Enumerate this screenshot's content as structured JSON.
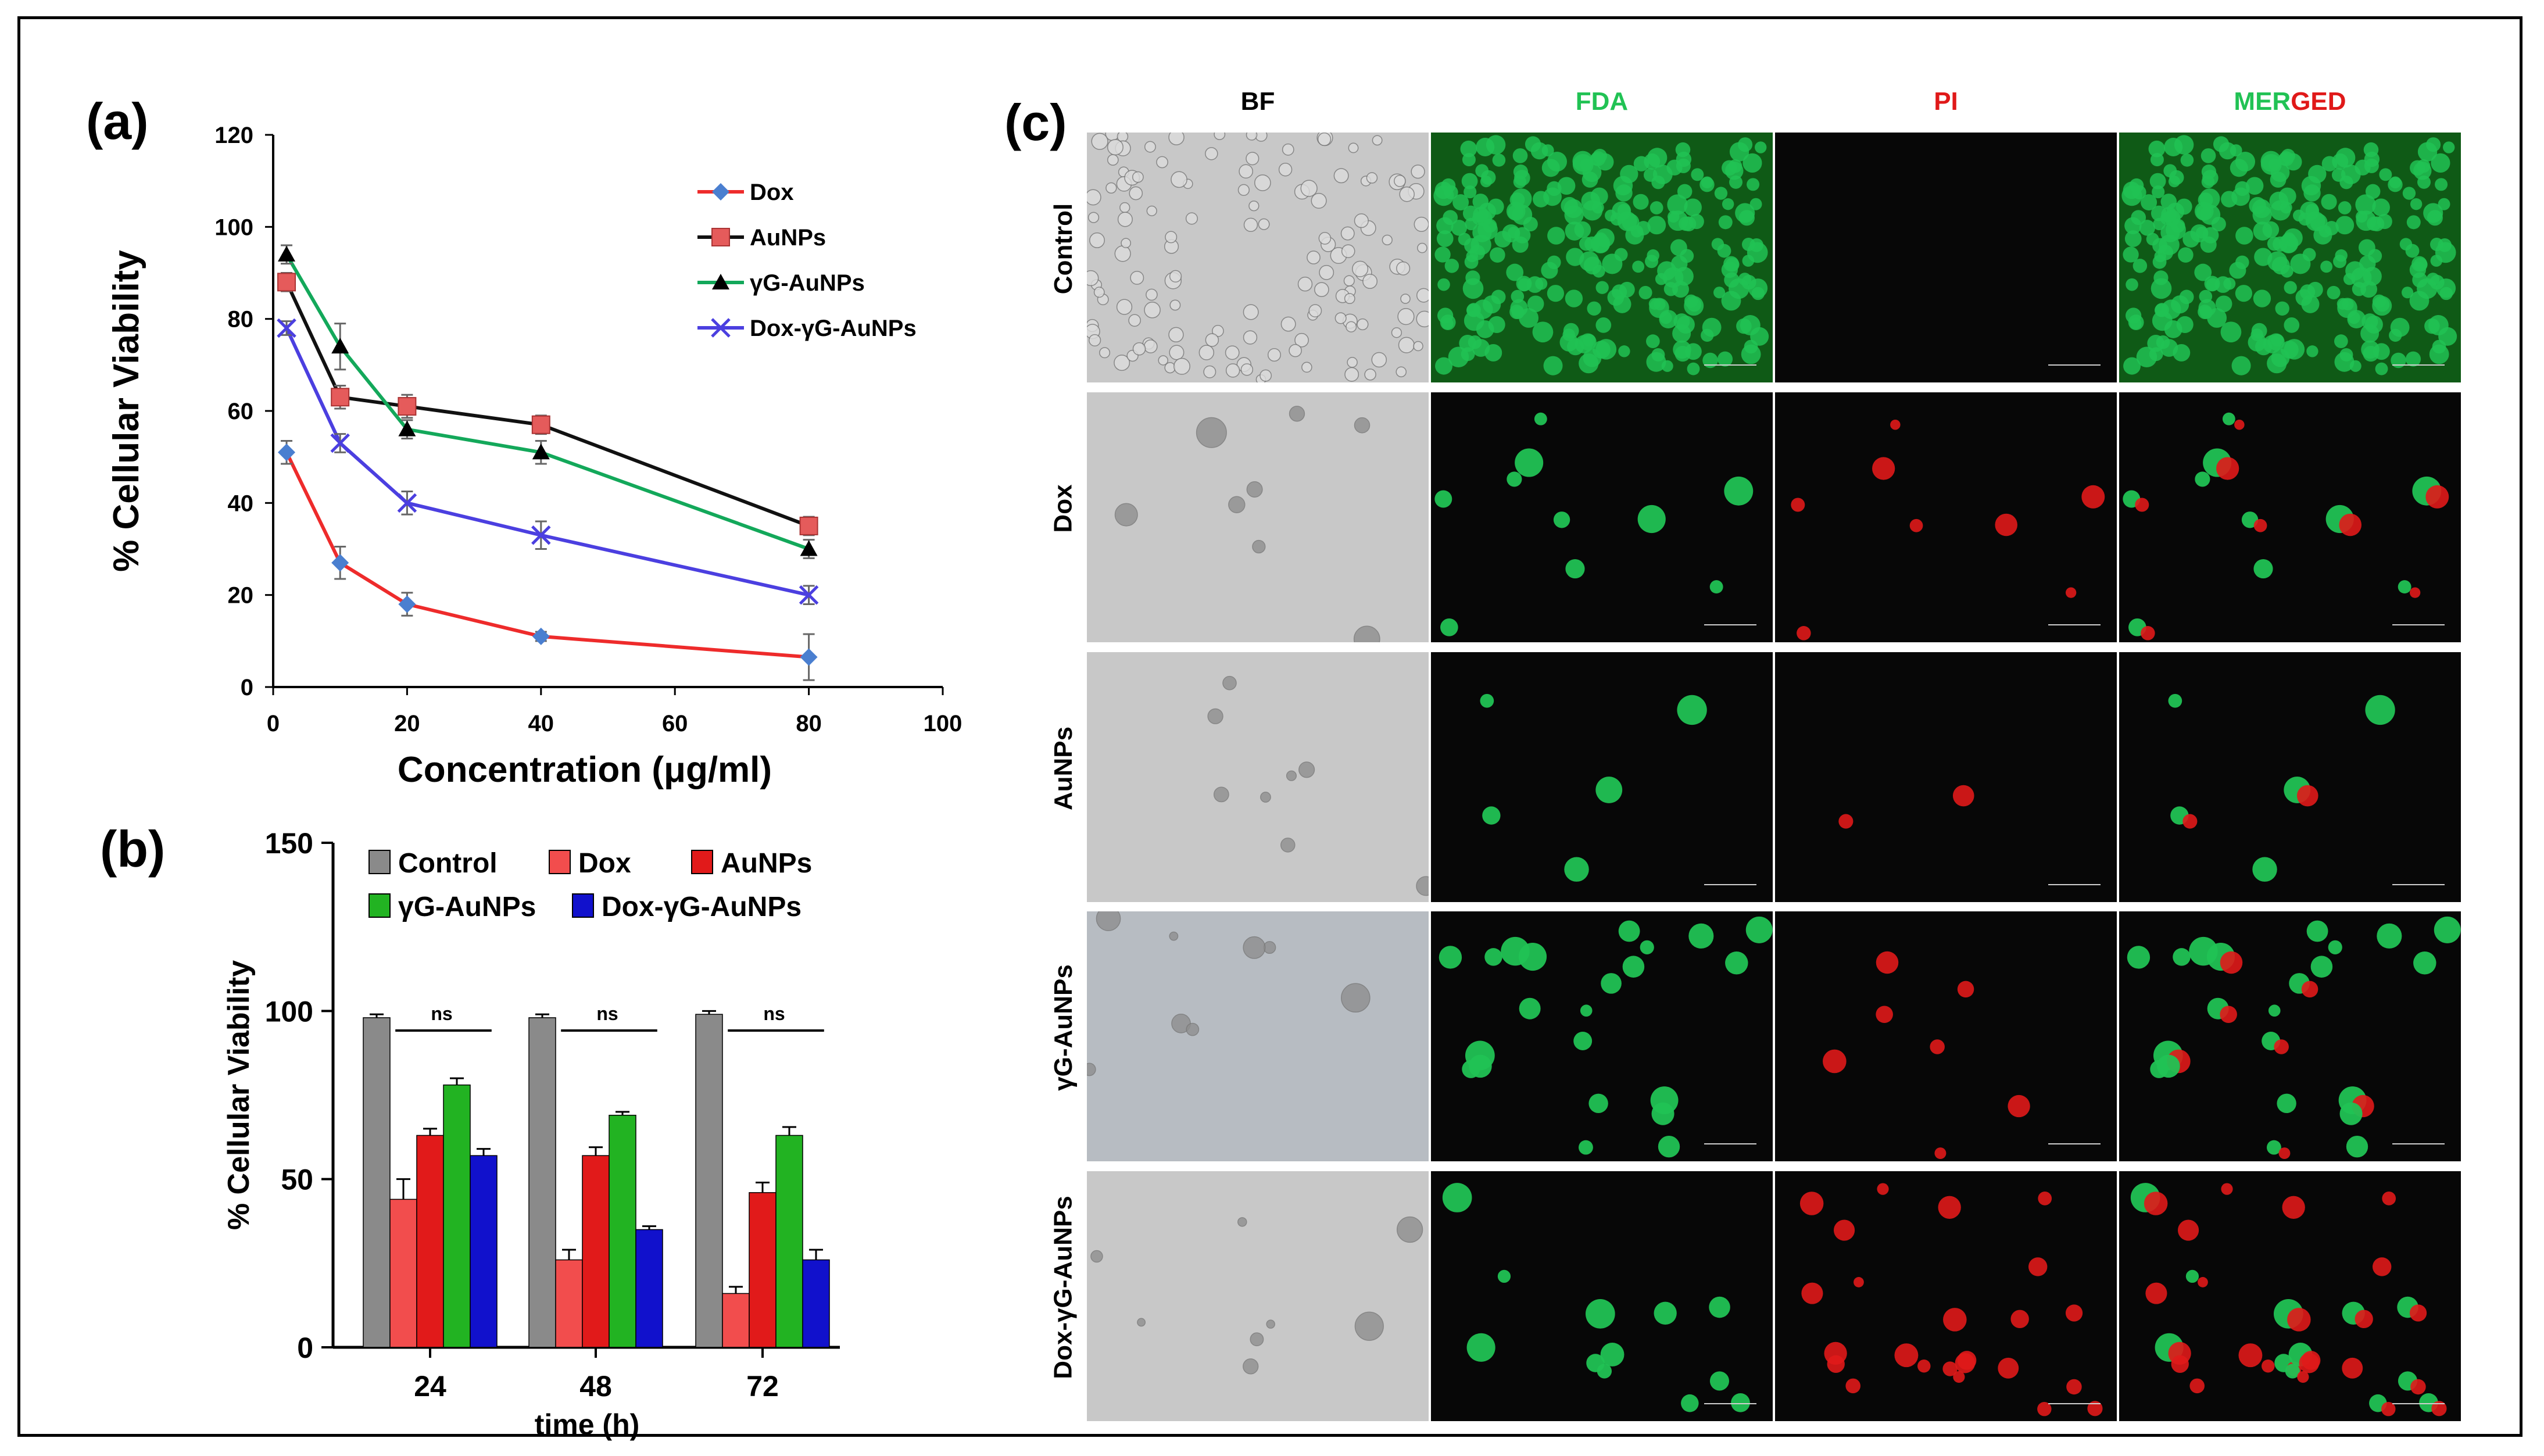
{
  "panel_labels": {
    "a": "(a)",
    "b": "(b)",
    "c": "(c)"
  },
  "colors": {
    "dox": "#ee2b2b",
    "aunps": "#111111",
    "ygaunps": "#13a85a",
    "doxyg": "#4b3fe0",
    "marker_dox": "#4a7fd0",
    "marker_aunps": "#e55b5b",
    "bar_control": "#8a8a8a",
    "bar_dox": "#f24d4d",
    "bar_aunps": "#e11a1a",
    "bar_yg": "#22b322",
    "bar_doxyg": "#1111cc",
    "fda": "#21c254",
    "pi": "#e01919",
    "bf_bg": "#c8c8c8"
  },
  "chart_data": [
    {
      "type": "line",
      "title": "",
      "xlabel": "Concentration (μg/ml)",
      "ylabel": "% Cellular Viability",
      "xlim": [
        0,
        100
      ],
      "ylim": [
        0,
        120
      ],
      "xticks": [
        0,
        20,
        40,
        60,
        80,
        100
      ],
      "yticks": [
        0,
        20,
        40,
        60,
        80,
        100,
        120
      ],
      "legend_position": "top-right",
      "x": [
        2,
        10,
        20,
        40,
        80
      ],
      "series": [
        {
          "name": "Dox",
          "values": [
            51,
            27,
            18,
            11,
            6.5
          ],
          "errors": [
            2.5,
            3.5,
            2.5,
            1,
            5
          ],
          "marker": "diamond"
        },
        {
          "name": "AuNPs",
          "values": [
            88,
            63,
            61,
            57,
            35
          ],
          "errors": [
            2,
            2.5,
            2.5,
            2,
            2
          ],
          "marker": "square"
        },
        {
          "name": "γG-AuNPs",
          "values": [
            94,
            74,
            56,
            51,
            30
          ],
          "errors": [
            2,
            5,
            2,
            2.5,
            2
          ],
          "marker": "triangle"
        },
        {
          "name": "Dox-γG-AuNPs",
          "values": [
            78,
            53,
            40,
            33,
            20
          ],
          "errors": [
            1.5,
            2,
            2.5,
            3,
            2
          ],
          "marker": "cross"
        }
      ]
    },
    {
      "type": "bar",
      "title": "",
      "xlabel": "time (h)",
      "ylabel": "% Cellular Viability",
      "ylim": [
        0,
        150
      ],
      "yticks": [
        0,
        50,
        100,
        150
      ],
      "legend_position": "top",
      "categories": [
        "24",
        "48",
        "72"
      ],
      "series": [
        {
          "name": "Control",
          "values": [
            98,
            98,
            99
          ],
          "errors": [
            1,
            1,
            1
          ]
        },
        {
          "name": "Dox",
          "values": [
            44,
            26,
            16
          ],
          "errors": [
            6,
            3,
            2
          ]
        },
        {
          "name": "AuNPs",
          "values": [
            63,
            57,
            46
          ],
          "errors": [
            2,
            2.5,
            3
          ]
        },
        {
          "name": "γG-AuNPs",
          "values": [
            78,
            69,
            63
          ],
          "errors": [
            2,
            1,
            2.5
          ]
        },
        {
          "name": "Dox-γG-AuNPs",
          "values": [
            57,
            35,
            26
          ],
          "errors": [
            2,
            1,
            3
          ]
        }
      ],
      "annotations": [
        "ns",
        "ns",
        "ns"
      ]
    }
  ],
  "micrographs": {
    "columns": [
      "BF",
      "FDA",
      "PI",
      "MER",
      "GED"
    ],
    "rows": [
      "Control",
      "Dox",
      "AuNPs",
      "γG-AuNPs",
      "Dox-γG-AuNPs"
    ]
  }
}
